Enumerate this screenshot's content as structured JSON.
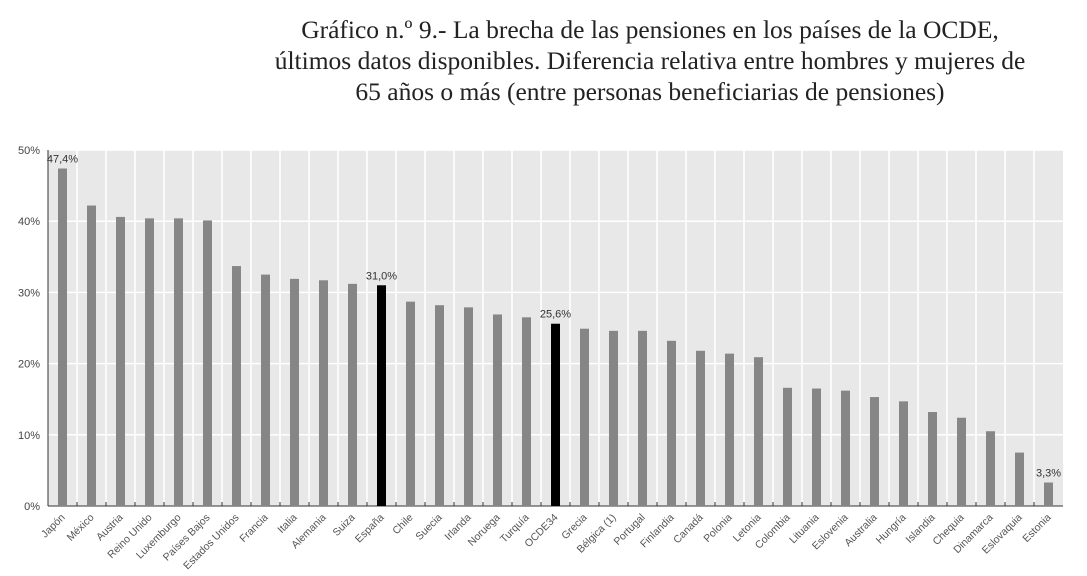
{
  "chart_data": {
    "type": "bar",
    "title": [
      "Gráfico n.º 9.- La brecha de las pensiones en los países de la OCDE,",
      "últimos datos disponibles. Diferencia relativa entre hombres y mujeres de",
      "65 años o más (entre personas beneficiarias de pensiones)"
    ],
    "xlabel": "",
    "ylabel": "",
    "ylim": [
      0,
      50
    ],
    "yticks": [
      "0%",
      "10%",
      "20%",
      "30%",
      "40%",
      "50%"
    ],
    "grid": true,
    "categories": [
      "Japón",
      "México",
      "Austria",
      "Reino Unido",
      "Luxemburgo",
      "Países Bajos",
      "Estados Unidos",
      "Francia",
      "Italia",
      "Alemania",
      "Suiza",
      "España",
      "Chile",
      "Suecia",
      "Irlanda",
      "Noruega",
      "Turquía",
      "OCDE34",
      "Grecia",
      "Bélgica (1)",
      "Portugal",
      "Finlandia",
      "Canadá",
      "Polonia",
      "Letonia",
      "Colombia",
      "Lituania",
      "Eslovenia",
      "Australia",
      "Hungría",
      "Islandia",
      "Chequia",
      "Dinamarca",
      "Eslovaquia",
      "Estonia"
    ],
    "values": [
      47.4,
      42.2,
      40.6,
      40.4,
      40.4,
      40.1,
      33.7,
      32.5,
      31.9,
      31.7,
      31.2,
      31.0,
      28.7,
      28.2,
      27.9,
      26.9,
      26.5,
      25.6,
      24.9,
      24.6,
      24.6,
      23.2,
      21.8,
      21.4,
      20.9,
      16.6,
      16.5,
      16.2,
      15.3,
      14.7,
      13.2,
      12.4,
      10.5,
      7.5,
      3.3
    ],
    "highlighted": [
      "España",
      "OCDE34"
    ],
    "data_labels": {
      "Japón": "47,4%",
      "España": "31,0%",
      "OCDE34": "25,6%",
      "Estonia": "3,3%"
    },
    "colors": {
      "bar": "#868686",
      "highlight": "#000000",
      "background": "#e8e8e8",
      "grid": "#ffffff"
    }
  }
}
